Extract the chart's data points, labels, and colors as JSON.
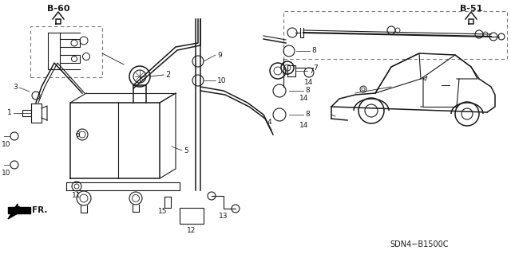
{
  "bg_color": "#f0f0f0",
  "line_color": "#1a1a1a",
  "text_color": "#1a1a1a",
  "ref_b60": "B-60",
  "ref_b51": "B-51",
  "code": "SDN4−B1500C",
  "fr_label": "FR.",
  "fig_width": 6.4,
  "fig_height": 3.19,
  "dpi": 100
}
